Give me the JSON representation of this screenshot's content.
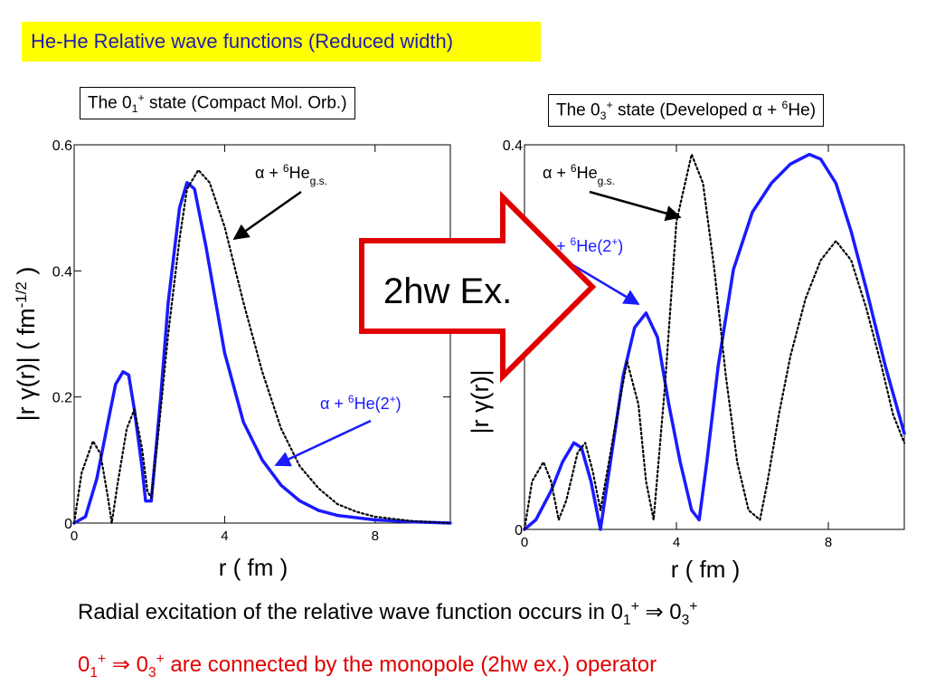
{
  "header": {
    "title": "He-He Relative wave functions (Reduced width)"
  },
  "left_panel": {
    "state_label": {
      "prefix": "The 0",
      "sub": "1",
      "sup": "+",
      "suffix": " state (Compact Mol. Orb.)"
    },
    "annot_gs": {
      "prefix": "α + ",
      "sup": "6",
      "mid": "He",
      "sub": "g.s."
    },
    "annot_2p": {
      "prefix": "α + ",
      "sup": "6",
      "mid": "He(2",
      "sup2": "+",
      "suffix": ")"
    }
  },
  "right_panel": {
    "state_label": {
      "prefix": "The 0",
      "sub": "3",
      "sup": "+",
      "suffix": " state (Developed α + ",
      "sup2": "6",
      "suffix2": "He)"
    },
    "annot_gs": {
      "prefix": "α + ",
      "sup": "6",
      "mid": "He",
      "sub": "g.s."
    },
    "annot_2p": {
      "prefix": "+ ",
      "sup": "6",
      "mid": "He(2",
      "sup2": "+",
      "suffix": ")"
    }
  },
  "arrow": {
    "label": "2hw Ex."
  },
  "footer": {
    "line1": {
      "text": "Radial excitation of the relative wave function occurs in 0",
      "sub1": "1",
      "sup1": "+",
      "arrow": " ⇒ 0",
      "sub2": "3",
      "sup2": "+"
    },
    "line2": {
      "prefix": "0",
      "sub1": "1",
      "sup1": "+",
      "arrow": " ⇒ 0",
      "sub2": "3",
      "sup2": "+",
      "text": " are connected by the monopole (2hw ex.) operator"
    }
  },
  "chart_data": [
    {
      "type": "line",
      "xlabel": "r ( fm )",
      "ylabel": "|r γ(r)| ( fm-1/2 )",
      "ylabel_parts": {
        "main": "|r γ(r)|   ( fm",
        "sup": "-1/2",
        "end": " )"
      },
      "xlim": [
        0,
        10
      ],
      "ylim": [
        0,
        0.6
      ],
      "x_ticks": [
        "0",
        "4",
        "8"
      ],
      "y_ticks": [
        "0",
        "0.2",
        "0.4",
        "0.6"
      ],
      "grid": false,
      "series": [
        {
          "style": "solid",
          "color": "#1a1aff",
          "x": [
            0,
            0.3,
            0.6,
            0.9,
            1.1,
            1.3,
            1.45,
            1.6,
            1.8,
            1.9,
            2.05,
            2.3,
            2.5,
            2.8,
            3.0,
            3.2,
            3.5,
            4.0,
            4.5,
            5.0,
            5.5,
            6.0,
            6.5,
            7.0,
            8.0,
            9.0,
            10.0
          ],
          "y": [
            0,
            0.01,
            0.07,
            0.16,
            0.22,
            0.24,
            0.235,
            0.18,
            0.09,
            0.035,
            0.035,
            0.2,
            0.35,
            0.5,
            0.54,
            0.53,
            0.44,
            0.27,
            0.16,
            0.1,
            0.06,
            0.035,
            0.02,
            0.012,
            0.005,
            0.002,
            0
          ]
        },
        {
          "style": "dotted",
          "color": "#000000",
          "x": [
            0,
            0.2,
            0.5,
            0.7,
            0.9,
            1.0,
            1.15,
            1.4,
            1.6,
            1.8,
            1.95,
            2.05,
            2.2,
            2.5,
            2.8,
            3.0,
            3.3,
            3.6,
            4.0,
            4.5,
            5.0,
            5.5,
            6.0,
            6.5,
            7.0,
            7.5,
            8.0,
            9.0,
            10.0
          ],
          "y": [
            0,
            0.08,
            0.13,
            0.11,
            0.04,
            0,
            0.06,
            0.15,
            0.18,
            0.12,
            0.05,
            0.04,
            0.12,
            0.3,
            0.45,
            0.53,
            0.56,
            0.54,
            0.47,
            0.35,
            0.24,
            0.15,
            0.09,
            0.055,
            0.03,
            0.018,
            0.01,
            0.003,
            0
          ]
        }
      ]
    },
    {
      "type": "line",
      "xlabel": "r ( fm )",
      "ylabel": "|r γ(r)|",
      "xlim": [
        0,
        10
      ],
      "ylim": [
        0,
        0.4
      ],
      "x_ticks": [
        "0",
        "4",
        "8"
      ],
      "y_ticks": [
        "0",
        "0.4"
      ],
      "grid": false,
      "series": [
        {
          "style": "solid",
          "color": "#1a1aff",
          "x": [
            0,
            0.3,
            0.7,
            1.0,
            1.3,
            1.5,
            1.75,
            2.0,
            2.3,
            2.6,
            2.9,
            3.2,
            3.5,
            3.8,
            4.1,
            4.4,
            4.6,
            4.8,
            5.1,
            5.5,
            6.0,
            6.5,
            7.0,
            7.5,
            7.8,
            8.2,
            8.6,
            9.0,
            9.5,
            10.0
          ],
          "y": [
            0,
            0.01,
            0.04,
            0.07,
            0.09,
            0.085,
            0.05,
            0,
            0.08,
            0.16,
            0.21,
            0.225,
            0.2,
            0.13,
            0.07,
            0.02,
            0.01,
            0.07,
            0.17,
            0.27,
            0.33,
            0.36,
            0.38,
            0.39,
            0.385,
            0.36,
            0.31,
            0.25,
            0.17,
            0.1
          ]
        },
        {
          "style": "dotted",
          "color": "#000000",
          "x": [
            0,
            0.2,
            0.5,
            0.7,
            0.9,
            1.1,
            1.4,
            1.6,
            1.8,
            2.0,
            2.4,
            2.7,
            3.0,
            3.2,
            3.4,
            3.7,
            4.0,
            4.4,
            4.7,
            5.0,
            5.3,
            5.6,
            5.9,
            6.2,
            6.4,
            6.7,
            7.0,
            7.4,
            7.8,
            8.2,
            8.6,
            9.0,
            9.4,
            9.7,
            10.0
          ],
          "y": [
            0,
            0.05,
            0.07,
            0.05,
            0.01,
            0.03,
            0.08,
            0.09,
            0.06,
            0.02,
            0.11,
            0.175,
            0.13,
            0.05,
            0.01,
            0.15,
            0.32,
            0.39,
            0.36,
            0.27,
            0.16,
            0.07,
            0.02,
            0.01,
            0.05,
            0.12,
            0.18,
            0.24,
            0.28,
            0.3,
            0.28,
            0.23,
            0.17,
            0.12,
            0.09
          ]
        }
      ]
    }
  ]
}
